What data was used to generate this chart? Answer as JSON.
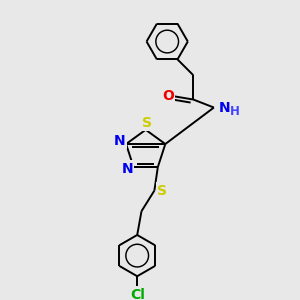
{
  "background_color": "#e8e8e8",
  "bond_color": "#000000",
  "atom_colors": {
    "N": "#0000ee",
    "O": "#ee0000",
    "S_ring": "#cccc00",
    "S_thio": "#cccc00",
    "Cl": "#00aa00",
    "C": "#000000",
    "H": "#4444ff"
  },
  "figsize": [
    3.0,
    3.0
  ],
  "dpi": 100
}
